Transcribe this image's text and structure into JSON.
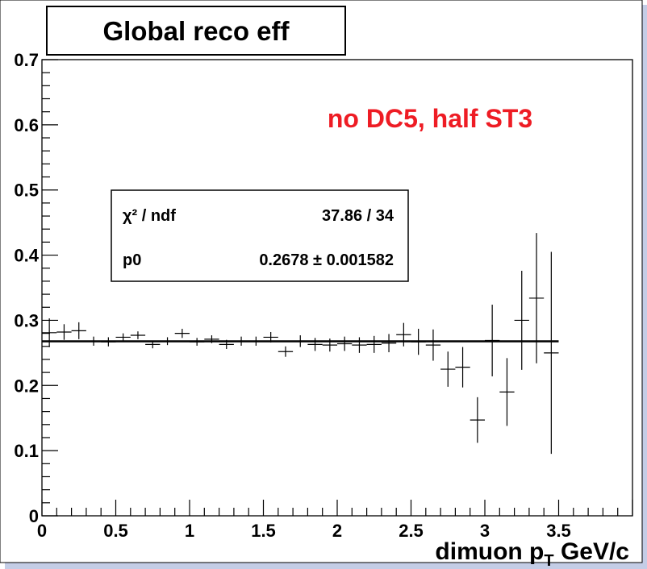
{
  "colors": {
    "annotation": "#ee1c24",
    "border_shadow": "#c4cde6"
  },
  "chart_data": {
    "type": "scatter",
    "title": "Global reco eff",
    "annotation": "no DC5, half ST3",
    "xlabel": {
      "main": "dimuon p",
      "sub": "T",
      "unit": " GeV/c"
    },
    "ylabel": "",
    "xlim": [
      0,
      4.0
    ],
    "ylim": [
      0,
      0.7
    ],
    "x_ticks": [
      "0",
      "0.5",
      "1",
      "1.5",
      "2",
      "2.5",
      "3",
      "3.5"
    ],
    "y_ticks": [
      "0",
      "0.1",
      "0.2",
      "0.3",
      "0.4",
      "0.5",
      "0.6",
      "0.7"
    ],
    "bin_half_width": 0.05,
    "points": [
      {
        "x": 0.05,
        "y": 0.281,
        "err": 0.022
      },
      {
        "x": 0.15,
        "y": 0.282,
        "err": 0.012
      },
      {
        "x": 0.25,
        "y": 0.284,
        "err": 0.013
      },
      {
        "x": 0.35,
        "y": 0.268,
        "err": 0.007
      },
      {
        "x": 0.45,
        "y": 0.267,
        "err": 0.007
      },
      {
        "x": 0.55,
        "y": 0.274,
        "err": 0.006
      },
      {
        "x": 0.65,
        "y": 0.277,
        "err": 0.006
      },
      {
        "x": 0.75,
        "y": 0.263,
        "err": 0.006
      },
      {
        "x": 0.85,
        "y": 0.268,
        "err": 0.006
      },
      {
        "x": 0.95,
        "y": 0.28,
        "err": 0.007
      },
      {
        "x": 1.05,
        "y": 0.267,
        "err": 0.006
      },
      {
        "x": 1.15,
        "y": 0.271,
        "err": 0.006
      },
      {
        "x": 1.25,
        "y": 0.263,
        "err": 0.007
      },
      {
        "x": 1.35,
        "y": 0.268,
        "err": 0.007
      },
      {
        "x": 1.45,
        "y": 0.268,
        "err": 0.007
      },
      {
        "x": 1.55,
        "y": 0.274,
        "err": 0.008
      },
      {
        "x": 1.65,
        "y": 0.252,
        "err": 0.008
      },
      {
        "x": 1.75,
        "y": 0.268,
        "err": 0.009
      },
      {
        "x": 1.85,
        "y": 0.263,
        "err": 0.01
      },
      {
        "x": 1.95,
        "y": 0.262,
        "err": 0.01
      },
      {
        "x": 2.05,
        "y": 0.264,
        "err": 0.011
      },
      {
        "x": 2.15,
        "y": 0.262,
        "err": 0.012
      },
      {
        "x": 2.25,
        "y": 0.263,
        "err": 0.013
      },
      {
        "x": 2.35,
        "y": 0.265,
        "err": 0.014
      },
      {
        "x": 2.45,
        "y": 0.278,
        "err": 0.018
      },
      {
        "x": 2.55,
        "y": 0.267,
        "err": 0.02
      },
      {
        "x": 2.65,
        "y": 0.262,
        "err": 0.024
      },
      {
        "x": 2.75,
        "y": 0.225,
        "err": 0.027
      },
      {
        "x": 2.85,
        "y": 0.228,
        "err": 0.031
      },
      {
        "x": 2.95,
        "y": 0.147,
        "err": 0.035
      },
      {
        "x": 3.05,
        "y": 0.269,
        "err": 0.055
      },
      {
        "x": 3.15,
        "y": 0.19,
        "err": 0.052
      },
      {
        "x": 3.25,
        "y": 0.3,
        "err": 0.076
      },
      {
        "x": 3.35,
        "y": 0.334,
        "err": 0.1
      },
      {
        "x": 3.45,
        "y": 0.25,
        "err": 0.155
      }
    ],
    "fit": {
      "y": 0.2678,
      "x_start": 0,
      "x_end": 3.5
    },
    "stats": {
      "chi2_label": "χ² / ndf",
      "chi2_value": "37.86 / 34",
      "p0_label": "p0",
      "p0_value": "0.2678 ± 0.001582"
    }
  }
}
